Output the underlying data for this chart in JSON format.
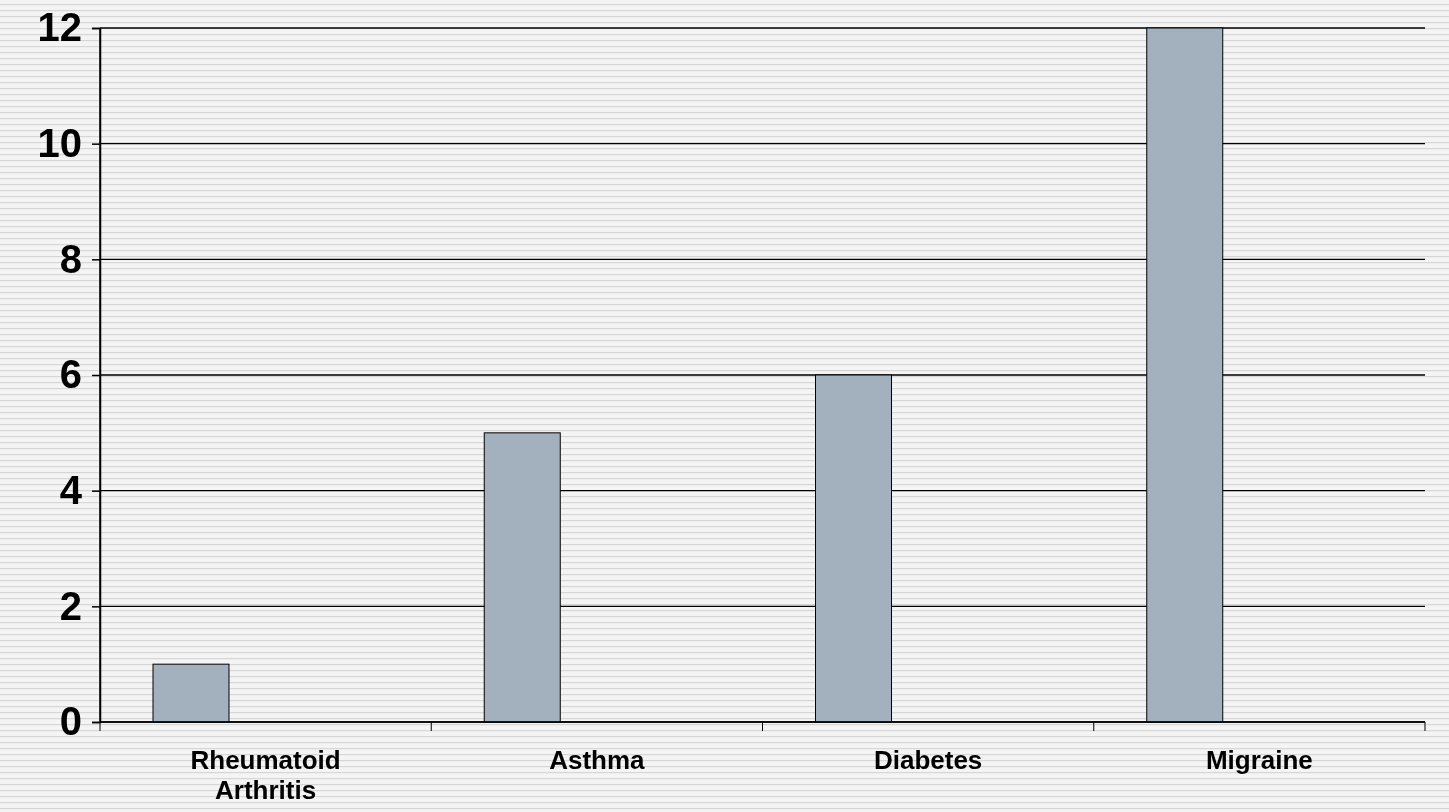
{
  "chart_data": {
    "type": "bar",
    "categories": [
      "Rheumatoid Arthritis",
      "Asthma",
      "Diabetes",
      "Migraine"
    ],
    "values": [
      1,
      5,
      6,
      12
    ],
    "color": "#a3b1bf",
    "ylim": [
      0,
      12
    ],
    "yticks": [
      0,
      2,
      4,
      6,
      8,
      10,
      12
    ],
    "grid": "y"
  }
}
